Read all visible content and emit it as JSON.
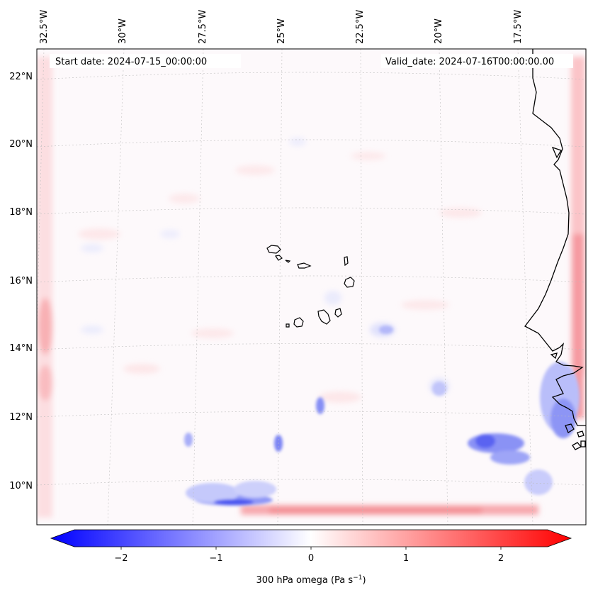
{
  "header": {
    "start_date": "Start date: 2024-07-15_00:00:00",
    "valid_date": "Valid_date: 2024-07-16T00:00:00.00"
  },
  "map": {
    "lon_labels": [
      "32.5°W",
      "30°W",
      "27.5°W",
      "25°W",
      "22.5°W",
      "20°W",
      "17.5°W"
    ],
    "lat_labels": [
      "22°N",
      "20°N",
      "18°N",
      "16°N",
      "14°N",
      "12°N",
      "10°N"
    ]
  },
  "colorbar": {
    "ticks": [
      "−2",
      "−1",
      "0",
      "1",
      "2"
    ],
    "label_main": "300 hPa omega (Pa s",
    "label_sup": "−1",
    "label_end": ")",
    "colors": {
      "min": "#0000ff",
      "mid": "#ffffff",
      "max": "#ff0000"
    }
  }
}
